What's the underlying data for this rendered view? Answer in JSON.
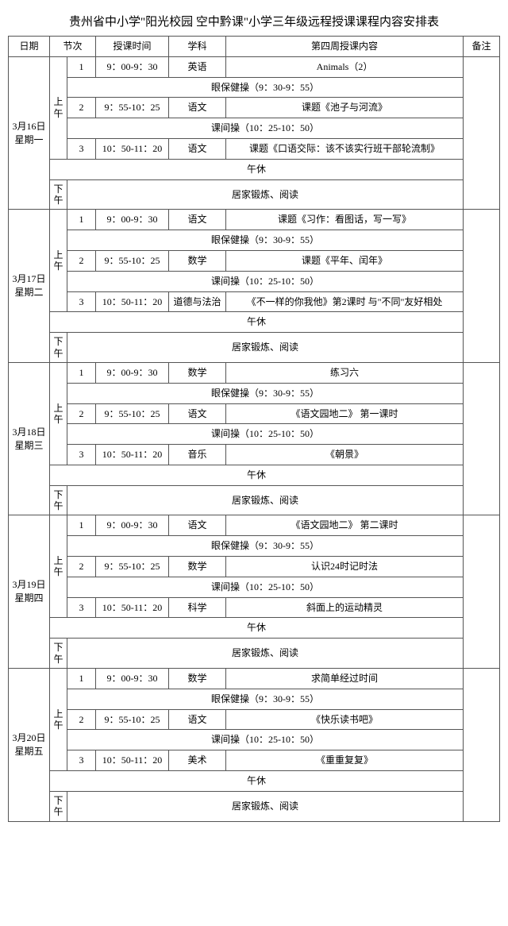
{
  "title": "贵州省中小学\"阳光校园 空中黔课\"小学三年级远程授课课程内容安排表",
  "headers": {
    "date": "日期",
    "period": "节次",
    "time": "授课时间",
    "subject": "学科",
    "content": "第四周授课内容",
    "note": "备注"
  },
  "common": {
    "am": "上午",
    "pm": "下午",
    "eye": "眼保健操（9：30-9：55）",
    "break": "课间操（10：25-10：50）",
    "noon": "午休",
    "pmActivity": "居家锻炼、阅读",
    "p1": "1",
    "p2": "2",
    "p3": "3",
    "t1": "9：00-9：30",
    "t2": "9：55-10：25",
    "t3": "10：50-11：20"
  },
  "days": [
    {
      "date": "3月16日星期一",
      "s1": {
        "subj": "英语",
        "content": "Animals（2）"
      },
      "s2": {
        "subj": "语文",
        "content": "课题《池子与河流》"
      },
      "s3": {
        "subj": "语文",
        "content": "课题《口语交际：该不该实行班干部轮流制》"
      }
    },
    {
      "date": "3月17日星期二",
      "s1": {
        "subj": "语文",
        "content": "课题《习作：看图话，写一写》"
      },
      "s2": {
        "subj": "数学",
        "content": "课题《平年、闰年》"
      },
      "s3": {
        "subj": "道德与法治",
        "content": "《不一样的你我他》第2课时 与\"不同\"友好相处"
      }
    },
    {
      "date": "3月18日星期三",
      "s1": {
        "subj": "数学",
        "content": "练习六"
      },
      "s2": {
        "subj": "语文",
        "content": "《语文园地二》 第一课时"
      },
      "s3": {
        "subj": "音乐",
        "content": "《朝景》"
      }
    },
    {
      "date": "3月19日星期四",
      "s1": {
        "subj": "语文",
        "content": "《语文园地二》 第二课时"
      },
      "s2": {
        "subj": "数学",
        "content": "认识24时记时法"
      },
      "s3": {
        "subj": "科学",
        "content": "斜面上的运动精灵"
      }
    },
    {
      "date": "3月20日星期五",
      "s1": {
        "subj": "数学",
        "content": "求简单经过时间"
      },
      "s2": {
        "subj": "语文",
        "content": "《快乐读书吧》"
      },
      "s3": {
        "subj": "美术",
        "content": "《重重复复》"
      }
    }
  ]
}
